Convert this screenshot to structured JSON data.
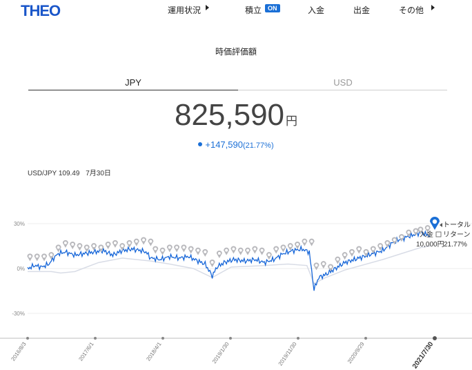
{
  "nav": {
    "logo": "THEO",
    "items": [
      {
        "label": "運用状況"
      },
      {
        "label": "積立"
      },
      {
        "label": "入金"
      },
      {
        "label": "出金"
      },
      {
        "label": "その他"
      }
    ],
    "on_badge": "ON"
  },
  "section_title": "時価評価額",
  "tabs": [
    {
      "label": "JPY",
      "active": true
    },
    {
      "label": "USD",
      "active": false
    }
  ],
  "valuation": {
    "amount": "825,590",
    "unit": "円",
    "change": "+147,590",
    "change_pct": "(21.77%)"
  },
  "fx": {
    "label": "USD/JPY 109.49",
    "date": "7月30日"
  },
  "colors": {
    "accent": "#1a6fd6",
    "brand": "#1a56c9",
    "deposit_marker": "#b8b8bc",
    "return_line": "#1565d8",
    "deposit_line": "#d8dce6"
  },
  "chart_data": {
    "type": "line",
    "ylim": [
      -42,
      42
    ],
    "ytick_labels": [
      "30%",
      "0%",
      "-30%"
    ],
    "yticks": [
      30,
      0,
      -30
    ],
    "x_tick_labels": [
      "2016/8/3",
      "2017/6/1",
      "2018/4/1",
      "2019/1/30",
      "2019/11/30",
      "2020/9/29",
      "2021/7/30"
    ],
    "grid": true,
    "series": [
      {
        "name": "トータルリターン",
        "points": [
          [
            0,
            0
          ],
          [
            3,
            2
          ],
          [
            6,
            1
          ],
          [
            9,
            3
          ],
          [
            11,
            7
          ],
          [
            13,
            10
          ],
          [
            16,
            11
          ],
          [
            20,
            9
          ],
          [
            24,
            10
          ],
          [
            28,
            11
          ],
          [
            32,
            12
          ],
          [
            36,
            9
          ],
          [
            40,
            12
          ],
          [
            44,
            13
          ],
          [
            48,
            12
          ],
          [
            50,
            11
          ],
          [
            52,
            7
          ],
          [
            56,
            6
          ],
          [
            60,
            8
          ],
          [
            64,
            7
          ],
          [
            68,
            8
          ],
          [
            72,
            5
          ],
          [
            75,
            3
          ],
          [
            78,
            -5
          ],
          [
            80,
            1
          ],
          [
            83,
            4
          ],
          [
            87,
            6
          ],
          [
            92,
            5
          ],
          [
            96,
            6
          ],
          [
            100,
            4
          ],
          [
            104,
            6
          ],
          [
            108,
            10
          ],
          [
            112,
            12
          ],
          [
            116,
            13
          ],
          [
            119,
            11
          ],
          [
            121,
            -14
          ],
          [
            123,
            -6
          ],
          [
            126,
            -4
          ],
          [
            130,
            0
          ],
          [
            134,
            4
          ],
          [
            138,
            6
          ],
          [
            142,
            8
          ],
          [
            146,
            10
          ],
          [
            150,
            12
          ],
          [
            154,
            17
          ],
          [
            158,
            20
          ],
          [
            162,
            22
          ],
          [
            166,
            24
          ],
          [
            170,
            22
          ]
        ]
      },
      {
        "name": "入金",
        "points": [
          [
            0,
            -2
          ],
          [
            10,
            -2
          ],
          [
            14,
            -3
          ],
          [
            20,
            -2
          ],
          [
            30,
            4
          ],
          [
            40,
            7
          ],
          [
            52,
            5
          ],
          [
            60,
            3
          ],
          [
            70,
            0
          ],
          [
            78,
            -6
          ],
          [
            86,
            1
          ],
          [
            100,
            2
          ],
          [
            110,
            3
          ],
          [
            118,
            2
          ],
          [
            121,
            -10
          ],
          [
            126,
            -6
          ],
          [
            134,
            -1
          ],
          [
            150,
            6
          ],
          [
            166,
            14
          ],
          [
            170,
            15
          ]
        ]
      }
    ],
    "deposit_markers": [
      [
        1,
        4
      ],
      [
        4,
        4
      ],
      [
        7,
        4
      ],
      [
        10,
        5
      ],
      [
        13,
        10
      ],
      [
        16,
        13
      ],
      [
        19,
        12
      ],
      [
        22,
        11
      ],
      [
        25,
        10
      ],
      [
        28,
        11
      ],
      [
        31,
        10
      ],
      [
        34,
        12
      ],
      [
        37,
        13
      ],
      [
        40,
        11
      ],
      [
        43,
        13
      ],
      [
        46,
        14
      ],
      [
        49,
        15
      ],
      [
        52,
        14
      ],
      [
        54,
        9
      ],
      [
        57,
        8
      ],
      [
        60,
        10
      ],
      [
        63,
        10
      ],
      [
        66,
        10
      ],
      [
        69,
        9
      ],
      [
        72,
        8
      ],
      [
        75,
        7
      ],
      [
        78,
        0
      ],
      [
        81,
        6
      ],
      [
        84,
        8
      ],
      [
        87,
        9
      ],
      [
        90,
        8
      ],
      [
        93,
        8
      ],
      [
        96,
        9
      ],
      [
        99,
        8
      ],
      [
        102,
        5
      ],
      [
        105,
        9
      ],
      [
        108,
        10
      ],
      [
        111,
        11
      ],
      [
        114,
        12
      ],
      [
        117,
        14
      ],
      [
        120,
        14
      ],
      [
        122,
        -2
      ],
      [
        125,
        -1
      ],
      [
        128,
        -3
      ],
      [
        131,
        2
      ],
      [
        134,
        5
      ],
      [
        137,
        7
      ],
      [
        140,
        9
      ],
      [
        143,
        7
      ],
      [
        146,
        9
      ],
      [
        149,
        11
      ],
      [
        152,
        13
      ],
      [
        155,
        15
      ],
      [
        158,
        17
      ],
      [
        161,
        20
      ],
      [
        164,
        21
      ],
      [
        166,
        22
      ],
      [
        169,
        23
      ]
    ],
    "current_marker": [
      172,
      24
    ],
    "legend": {
      "total_return_label_1": "トータル",
      "total_return_label_2": "リターン",
      "deposit_label": "入金",
      "deposit_value": "10,000円",
      "return_value": "21.77%"
    }
  }
}
